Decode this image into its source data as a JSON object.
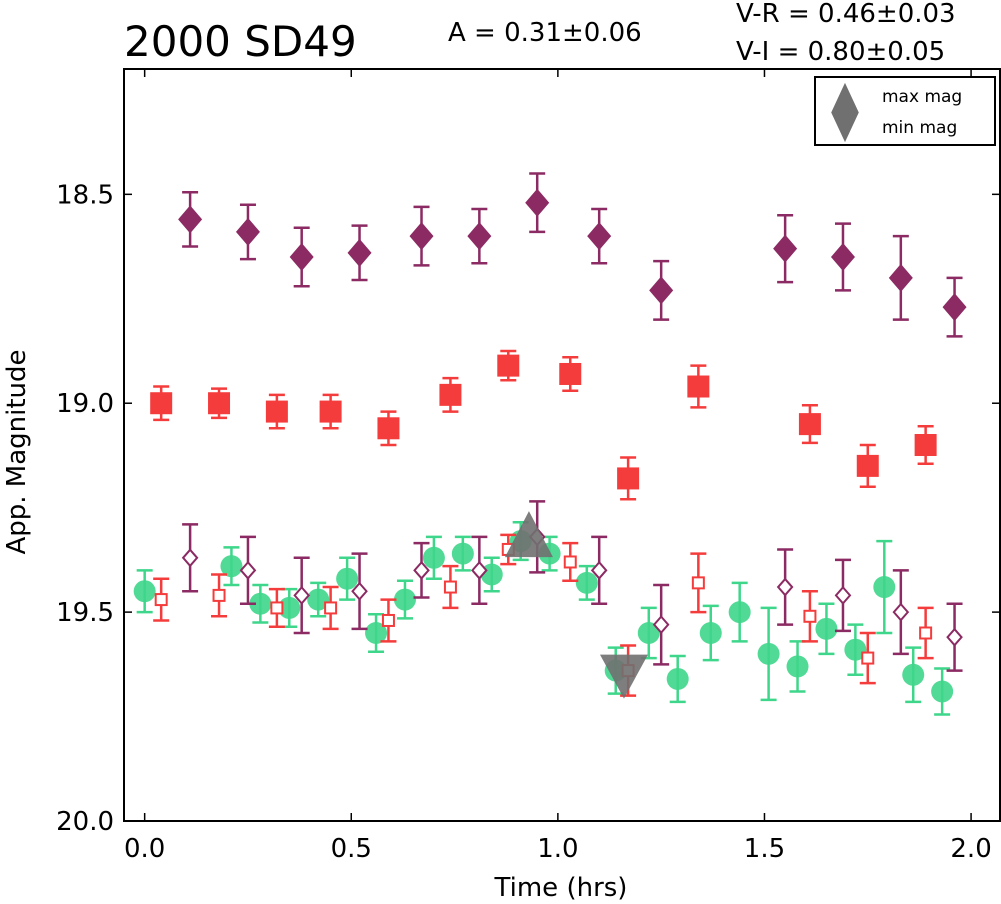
{
  "chart_data": {
    "type": "scatter",
    "title": "2000 SD49",
    "annotations": [
      "A  = 0.31±0.06",
      "V-R = 0.46±0.03",
      "V-I  = 0.80±0.05"
    ],
    "xlabel": "Time (hrs)",
    "ylabel": "App. Magnitude",
    "xlim": [
      -0.05,
      2.07
    ],
    "ylim": [
      20.0,
      18.2
    ],
    "y_inverted": true,
    "x_ticks": [
      0.0,
      0.5,
      1.0,
      1.5,
      2.0
    ],
    "x_tick_labels": [
      "0.0",
      "0.5",
      "1.0",
      "1.5",
      "2.0"
    ],
    "y_ticks": [
      18.5,
      19.0,
      19.5,
      20.0
    ],
    "y_tick_labels": [
      "18.5",
      "19.0",
      "19.5",
      "20.0"
    ],
    "grid": false,
    "legend_position": "top-right",
    "legend": [
      {
        "label": "max mag",
        "marker": "triangle-up",
        "color": "#707070"
      },
      {
        "label": "min mag",
        "marker": "triangle-down",
        "color": "#707070"
      }
    ],
    "series": [
      {
        "marker": "diamond-filled",
        "color": "#8b2a63",
        "points": [
          [
            0.11,
            18.56,
            0.065
          ],
          [
            0.25,
            18.59,
            0.065
          ],
          [
            0.38,
            18.65,
            0.07
          ],
          [
            0.52,
            18.64,
            0.065
          ],
          [
            0.67,
            18.6,
            0.07
          ],
          [
            0.81,
            18.6,
            0.065
          ],
          [
            0.95,
            18.52,
            0.07
          ],
          [
            1.1,
            18.6,
            0.065
          ],
          [
            1.25,
            18.73,
            0.07
          ],
          [
            1.55,
            18.63,
            0.08
          ],
          [
            1.69,
            18.65,
            0.08
          ],
          [
            1.83,
            18.7,
            0.1
          ],
          [
            1.96,
            18.77,
            0.07
          ]
        ]
      },
      {
        "marker": "square-filled",
        "color": "#f53c3c",
        "points": [
          [
            0.04,
            19.0,
            0.04
          ],
          [
            0.18,
            19.0,
            0.035
          ],
          [
            0.32,
            19.02,
            0.04
          ],
          [
            0.45,
            19.02,
            0.04
          ],
          [
            0.59,
            19.06,
            0.04
          ],
          [
            0.74,
            18.98,
            0.04
          ],
          [
            0.88,
            18.91,
            0.035
          ],
          [
            1.03,
            18.93,
            0.04
          ],
          [
            1.17,
            19.18,
            0.05
          ],
          [
            1.34,
            18.96,
            0.05
          ],
          [
            1.61,
            19.05,
            0.045
          ],
          [
            1.75,
            19.15,
            0.05
          ],
          [
            1.89,
            19.1,
            0.045
          ]
        ]
      },
      {
        "marker": "circle-filled",
        "color": "#3ed68a",
        "points": [
          [
            0.0,
            19.45,
            0.05
          ],
          [
            0.21,
            19.39,
            0.045
          ],
          [
            0.28,
            19.48,
            0.045
          ],
          [
            0.35,
            19.49,
            0.045
          ],
          [
            0.42,
            19.47,
            0.04
          ],
          [
            0.49,
            19.42,
            0.05
          ],
          [
            0.56,
            19.55,
            0.045
          ],
          [
            0.63,
            19.47,
            0.045
          ],
          [
            0.7,
            19.37,
            0.05
          ],
          [
            0.77,
            19.36,
            0.04
          ],
          [
            0.84,
            19.41,
            0.04
          ],
          [
            0.91,
            19.33,
            0.045
          ],
          [
            0.98,
            19.36,
            0.04
          ],
          [
            1.07,
            19.43,
            0.04
          ],
          [
            1.14,
            19.64,
            0.055
          ],
          [
            1.22,
            19.55,
            0.06
          ],
          [
            1.29,
            19.66,
            0.055
          ],
          [
            1.37,
            19.55,
            0.065
          ],
          [
            1.44,
            19.5,
            0.07
          ],
          [
            1.51,
            19.6,
            0.11
          ],
          [
            1.58,
            19.63,
            0.06
          ],
          [
            1.65,
            19.54,
            0.06
          ],
          [
            1.72,
            19.59,
            0.06
          ],
          [
            1.79,
            19.44,
            0.11
          ],
          [
            1.86,
            19.65,
            0.065
          ],
          [
            1.93,
            19.69,
            0.055
          ]
        ]
      },
      {
        "marker": "diamond-open",
        "color": "#8b2a63",
        "points": [
          [
            0.11,
            19.37,
            0.08
          ],
          [
            0.25,
            19.4,
            0.08
          ],
          [
            0.38,
            19.46,
            0.09
          ],
          [
            0.52,
            19.45,
            0.09
          ],
          [
            0.67,
            19.4,
            0.065
          ],
          [
            0.81,
            19.4,
            0.08
          ],
          [
            0.95,
            19.32,
            0.085
          ],
          [
            1.1,
            19.4,
            0.08
          ],
          [
            1.25,
            19.53,
            0.095
          ],
          [
            1.55,
            19.44,
            0.09
          ],
          [
            1.69,
            19.46,
            0.085
          ],
          [
            1.83,
            19.5,
            0.1
          ],
          [
            1.96,
            19.56,
            0.08
          ]
        ]
      },
      {
        "marker": "square-open",
        "color": "#f53c3c",
        "points": [
          [
            0.04,
            19.47,
            0.05
          ],
          [
            0.18,
            19.46,
            0.05
          ],
          [
            0.32,
            19.49,
            0.045
          ],
          [
            0.45,
            19.49,
            0.05
          ],
          [
            0.59,
            19.52,
            0.05
          ],
          [
            0.74,
            19.44,
            0.05
          ],
          [
            0.88,
            19.35,
            0.035
          ],
          [
            1.03,
            19.38,
            0.045
          ],
          [
            1.17,
            19.64,
            0.06
          ],
          [
            1.34,
            19.43,
            0.07
          ],
          [
            1.61,
            19.51,
            0.06
          ],
          [
            1.75,
            19.61,
            0.06
          ],
          [
            1.89,
            19.55,
            0.06
          ]
        ]
      }
    ],
    "extremes": [
      {
        "label": "max mag",
        "marker": "triangle-up",
        "color": "#707070",
        "x": 0.93,
        "y": 19.33
      },
      {
        "label": "min mag",
        "marker": "triangle-down",
        "color": "#707070",
        "x": 1.16,
        "y": 19.64
      }
    ]
  }
}
